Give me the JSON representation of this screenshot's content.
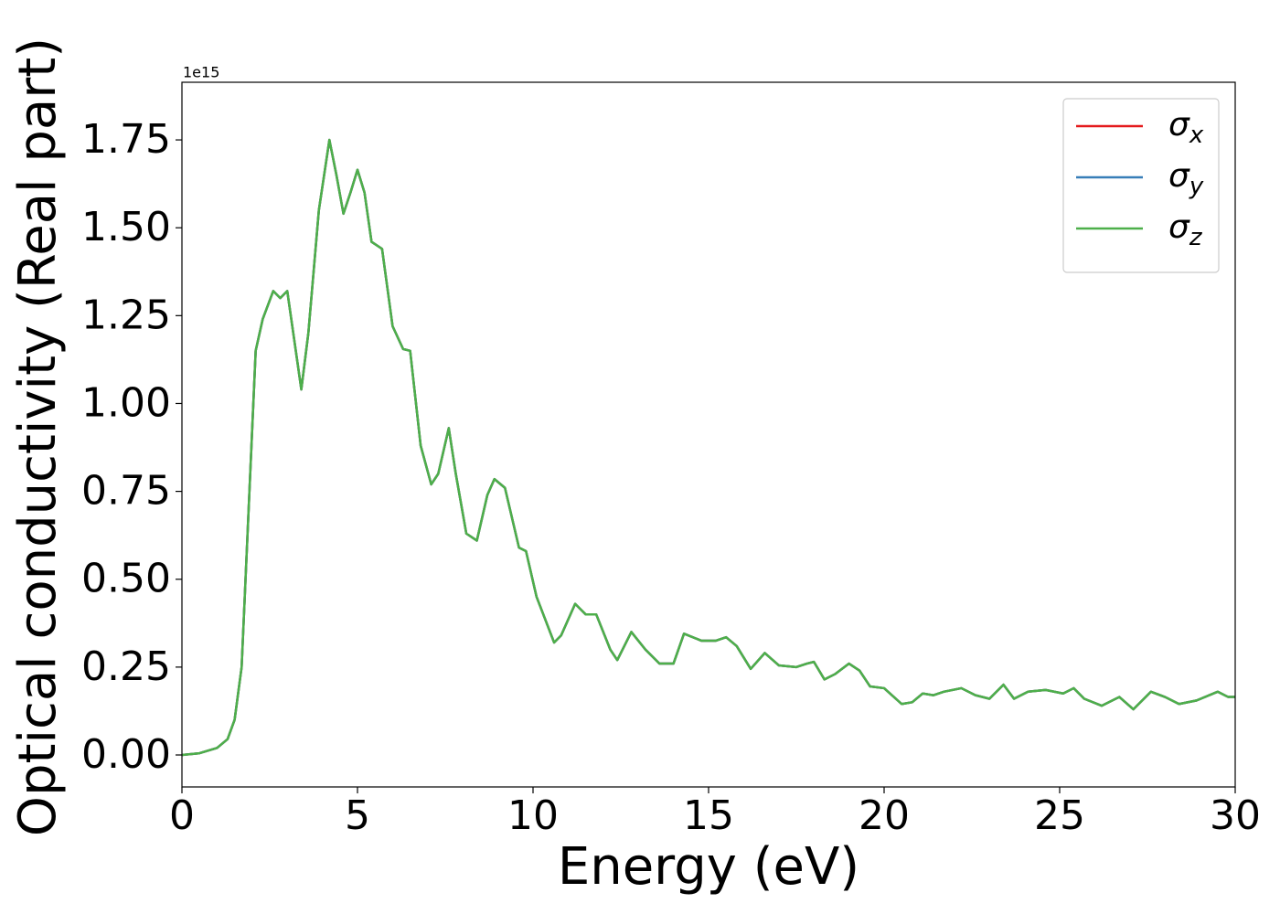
{
  "chart_data": {
    "type": "line",
    "x_label": "Energy (eV)",
    "y_label": "Optical conductivity (Real part)",
    "y_offset_label": "1e15",
    "x": [
      0,
      0.5,
      1.0,
      1.3,
      1.5,
      1.7,
      1.9,
      2.1,
      2.3,
      2.6,
      2.8,
      3.0,
      3.2,
      3.4,
      3.6,
      3.9,
      4.2,
      4.4,
      4.6,
      4.8,
      5.0,
      5.2,
      5.4,
      5.7,
      6.0,
      6.3,
      6.5,
      6.8,
      7.1,
      7.3,
      7.6,
      7.8,
      8.1,
      8.4,
      8.7,
      8.9,
      9.2,
      9.6,
      9.8,
      10.1,
      10.6,
      10.8,
      11.2,
      11.5,
      11.8,
      12.2,
      12.4,
      12.8,
      13.2,
      13.6,
      14.0,
      14.3,
      14.8,
      15.2,
      15.5,
      15.8,
      16.2,
      16.6,
      17.0,
      17.5,
      17.8,
      18.0,
      18.3,
      18.6,
      19.0,
      19.3,
      19.6,
      20.0,
      20.5,
      20.8,
      21.1,
      21.4,
      21.7,
      22.2,
      22.6,
      23.0,
      23.4,
      23.7,
      24.1,
      24.6,
      25.1,
      25.4,
      25.7,
      26.2,
      26.7,
      27.1,
      27.6,
      28.0,
      28.4,
      28.9,
      29.5,
      29.8,
      30.0
    ],
    "series": [
      {
        "name": "σx",
        "color": "#e41a1c",
        "values": [
          0.0,
          0.005,
          0.02,
          0.045,
          0.1,
          0.25,
          0.7,
          1.15,
          1.24,
          1.32,
          1.3,
          1.32,
          1.18,
          1.04,
          1.2,
          1.55,
          1.75,
          1.65,
          1.54,
          1.6,
          1.665,
          1.6,
          1.46,
          1.44,
          1.22,
          1.155,
          1.15,
          0.88,
          0.77,
          0.8,
          0.93,
          0.8,
          0.63,
          0.61,
          0.74,
          0.785,
          0.76,
          0.59,
          0.58,
          0.45,
          0.32,
          0.34,
          0.43,
          0.4,
          0.4,
          0.3,
          0.27,
          0.35,
          0.3,
          0.26,
          0.26,
          0.345,
          0.325,
          0.325,
          0.335,
          0.31,
          0.245,
          0.29,
          0.255,
          0.25,
          0.26,
          0.265,
          0.215,
          0.23,
          0.26,
          0.24,
          0.195,
          0.19,
          0.145,
          0.15,
          0.175,
          0.17,
          0.18,
          0.19,
          0.17,
          0.16,
          0.2,
          0.16,
          0.18,
          0.185,
          0.175,
          0.19,
          0.16,
          0.14,
          0.165,
          0.13,
          0.18,
          0.165,
          0.145,
          0.155,
          0.18,
          0.165,
          0.165
        ]
      },
      {
        "name": "σy",
        "color": "#377eb8",
        "values": [
          0.0,
          0.005,
          0.02,
          0.045,
          0.1,
          0.25,
          0.7,
          1.15,
          1.24,
          1.32,
          1.3,
          1.32,
          1.18,
          1.04,
          1.2,
          1.55,
          1.75,
          1.65,
          1.54,
          1.6,
          1.665,
          1.6,
          1.46,
          1.44,
          1.22,
          1.155,
          1.15,
          0.88,
          0.77,
          0.8,
          0.93,
          0.8,
          0.63,
          0.61,
          0.74,
          0.785,
          0.76,
          0.59,
          0.58,
          0.45,
          0.32,
          0.34,
          0.43,
          0.4,
          0.4,
          0.3,
          0.27,
          0.35,
          0.3,
          0.26,
          0.26,
          0.345,
          0.325,
          0.325,
          0.335,
          0.31,
          0.245,
          0.29,
          0.255,
          0.25,
          0.26,
          0.265,
          0.215,
          0.23,
          0.26,
          0.24,
          0.195,
          0.19,
          0.145,
          0.15,
          0.175,
          0.17,
          0.18,
          0.19,
          0.17,
          0.16,
          0.2,
          0.16,
          0.18,
          0.185,
          0.175,
          0.19,
          0.16,
          0.14,
          0.165,
          0.13,
          0.18,
          0.165,
          0.145,
          0.155,
          0.18,
          0.165,
          0.165
        ]
      },
      {
        "name": "σz",
        "color": "#4daf4a",
        "values": [
          0.0,
          0.005,
          0.02,
          0.045,
          0.1,
          0.25,
          0.7,
          1.15,
          1.24,
          1.32,
          1.3,
          1.32,
          1.18,
          1.04,
          1.2,
          1.55,
          1.75,
          1.65,
          1.54,
          1.6,
          1.665,
          1.6,
          1.46,
          1.44,
          1.22,
          1.155,
          1.15,
          0.88,
          0.77,
          0.8,
          0.93,
          0.8,
          0.63,
          0.61,
          0.74,
          0.785,
          0.76,
          0.59,
          0.58,
          0.45,
          0.32,
          0.34,
          0.43,
          0.4,
          0.4,
          0.3,
          0.27,
          0.35,
          0.3,
          0.26,
          0.26,
          0.345,
          0.325,
          0.325,
          0.335,
          0.31,
          0.245,
          0.29,
          0.255,
          0.25,
          0.26,
          0.265,
          0.215,
          0.23,
          0.26,
          0.24,
          0.195,
          0.19,
          0.145,
          0.15,
          0.175,
          0.17,
          0.18,
          0.19,
          0.17,
          0.16,
          0.2,
          0.16,
          0.18,
          0.185,
          0.175,
          0.19,
          0.16,
          0.14,
          0.165,
          0.13,
          0.18,
          0.165,
          0.145,
          0.155,
          0.18,
          0.165,
          0.165
        ]
      }
    ],
    "xlim": [
      0,
      30
    ],
    "xticks": [
      0,
      5,
      10,
      15,
      20,
      25,
      30
    ],
    "ylim": [
      -0.091,
      1.914
    ],
    "yticks": [
      {
        "value": 0,
        "label": "0.00"
      },
      {
        "value": 0.25,
        "label": "0.25"
      },
      {
        "value": 0.5,
        "label": "0.50"
      },
      {
        "value": 0.75,
        "label": "0.75"
      },
      {
        "value": 1,
        "label": "1.00"
      },
      {
        "value": 1.25,
        "label": "1.25"
      },
      {
        "value": 1.5,
        "label": "1.50"
      },
      {
        "value": 1.75,
        "label": "1.75"
      }
    ],
    "legend": "upper right",
    "grid": false
  }
}
